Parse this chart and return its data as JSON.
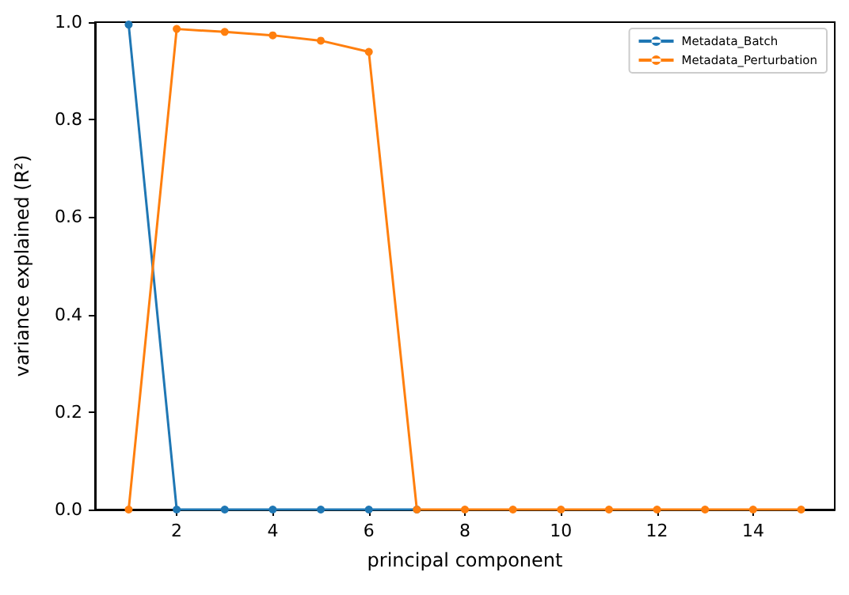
{
  "chart_data": {
    "type": "line",
    "xlabel": "principal component",
    "ylabel": "variance explained (R²)",
    "x": [
      1,
      2,
      3,
      4,
      5,
      6,
      7,
      8,
      9,
      10,
      11,
      12,
      13,
      14,
      15
    ],
    "series": [
      {
        "name": "Metadata_Batch",
        "color": "#1f77b4",
        "values": [
          0.995,
          0,
          0,
          0,
          0,
          0,
          0,
          null,
          null,
          null,
          null,
          null,
          null,
          null,
          null
        ]
      },
      {
        "name": "Metadata_Perturbation",
        "color": "#ff7f0e",
        "values": [
          0,
          0.986,
          0.98,
          0.973,
          0.962,
          0.939,
          0,
          0,
          0,
          0,
          0,
          0,
          0,
          0,
          0
        ]
      }
    ],
    "xlim": [
      0.3,
      15.7
    ],
    "xticks": [
      2,
      4,
      6,
      8,
      10,
      12,
      14
    ],
    "ylim": [
      0,
      1
    ],
    "yticks": [
      {
        "value": 0,
        "label": "0.0"
      },
      0.2,
      0.4,
      0.6,
      0.8,
      {
        "value": 1,
        "label": "1.0"
      }
    ],
    "legend": "top right",
    "marker": "circle",
    "line_style": "solid",
    "grid": false
  }
}
